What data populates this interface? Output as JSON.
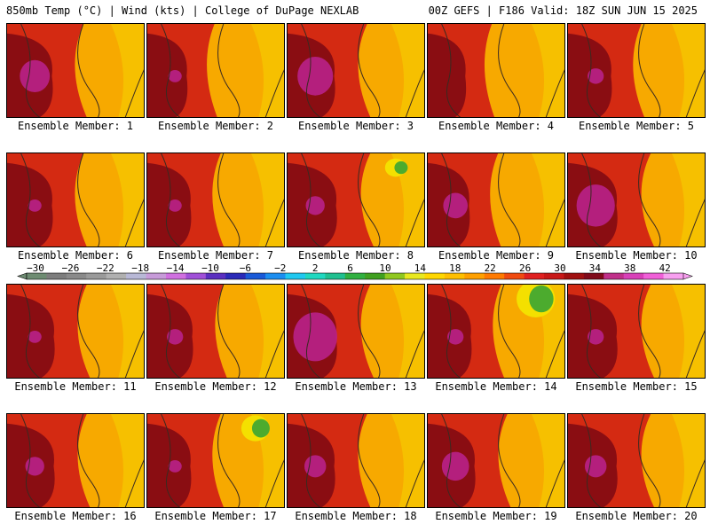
{
  "header": {
    "left": "850mb Temp (°C) | Wind (kts) | College of DuPage NEXLAB",
    "right": "00Z GEFS | F186 Valid: 18Z SUN JUN 15 2025"
  },
  "panels": [
    {
      "label": "Ensemble Member: 1"
    },
    {
      "label": "Ensemble Member: 2"
    },
    {
      "label": "Ensemble Member: 3"
    },
    {
      "label": "Ensemble Member: 4"
    },
    {
      "label": "Ensemble Member: 5"
    },
    {
      "label": "Ensemble Member: 6"
    },
    {
      "label": "Ensemble Member: 7"
    },
    {
      "label": "Ensemble Member: 8"
    },
    {
      "label": "Ensemble Member: 9"
    },
    {
      "label": "Ensemble Member: 10"
    },
    {
      "label": "Ensemble Member: 11"
    },
    {
      "label": "Ensemble Member: 12"
    },
    {
      "label": "Ensemble Member: 13"
    },
    {
      "label": "Ensemble Member: 14"
    },
    {
      "label": "Ensemble Member: 15"
    },
    {
      "label": "Ensemble Member: 16"
    },
    {
      "label": "Ensemble Member: 17"
    },
    {
      "label": "Ensemble Member: 18"
    },
    {
      "label": "Ensemble Member: 19"
    },
    {
      "label": "Ensemble Member: 20"
    }
  ],
  "colorbar": {
    "labels": [
      "-30",
      "-26",
      "-22",
      "-18",
      "-14",
      "-10",
      "-6",
      "-2",
      "2",
      "6",
      "10",
      "14",
      "18",
      "22",
      "26",
      "30",
      "34",
      "38",
      "42"
    ],
    "colors": [
      "#6e8c72",
      "#7d7d7d",
      "#8a8a8a",
      "#9a9a9a",
      "#b0b0b0",
      "#b8b8d6",
      "#c79bd9",
      "#d070e0",
      "#a050d8",
      "#5a2fc0",
      "#2a2ab8",
      "#1a5ad8",
      "#1c8ef0",
      "#20c8f0",
      "#20d8c0",
      "#20c090",
      "#30b040",
      "#40a020",
      "#90c820",
      "#e8e820",
      "#ffd700",
      "#ffbf00",
      "#ffa000",
      "#ff7a00",
      "#f04a10",
      "#e02020",
      "#c81818",
      "#a01010",
      "#800a1a",
      "#c0308a",
      "#d840b8",
      "#f060d8",
      "#f8a0f0"
    ]
  },
  "palette": {
    "orange": "#f7a900",
    "red": "#d42a12",
    "darkred": "#8a0d12",
    "magenta": "#b8218a",
    "yellow": "#f4e000",
    "green": "#4cab2e",
    "border": "#000000"
  }
}
